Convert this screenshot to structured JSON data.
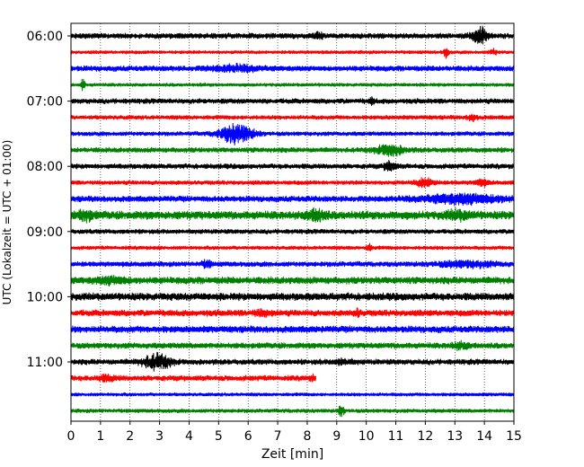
{
  "chart_data": {
    "type": "line",
    "title": "",
    "xlabel": "Zeit  [min]",
    "ylabel": "UTC (Lokalzeit = UTC + 01:00)",
    "xlim": [
      0,
      15
    ],
    "x_ticks": [
      "0",
      "1",
      "2",
      "3",
      "4",
      "5",
      "6",
      "7",
      "8",
      "9",
      "10",
      "11",
      "12",
      "13",
      "14",
      "15"
    ],
    "y_ticks": [
      {
        "label": "06:00",
        "row": 0
      },
      {
        "label": "07:00",
        "row": 4
      },
      {
        "label": "08:00",
        "row": 8
      },
      {
        "label": "09:00",
        "row": 12
      },
      {
        "label": "10:00",
        "row": 16
      },
      {
        "label": "11:00",
        "row": 20
      }
    ],
    "grid": "vertical dotted",
    "row_interval_minutes": 15,
    "color_cycle": [
      "#000000",
      "#ff0000",
      "#0000ff",
      "#008000"
    ],
    "series": [
      {
        "start": "06:00",
        "color": "#000000",
        "end_minute": 15,
        "noise": 2.6,
        "events": [
          {
            "t": 13.85,
            "amp": 7,
            "width": 0.25
          },
          {
            "t": 8.4,
            "amp": 2.5,
            "width": 0.15
          }
        ]
      },
      {
        "start": "06:15",
        "color": "#ff0000",
        "end_minute": 15,
        "noise": 1.6,
        "events": [
          {
            "t": 12.7,
            "amp": 5,
            "width": 0.08
          },
          {
            "t": 14.3,
            "amp": 2.5,
            "width": 0.12
          }
        ]
      },
      {
        "start": "06:30",
        "color": "#0000ff",
        "end_minute": 15,
        "noise": 2.6,
        "events": [
          {
            "t": 5.6,
            "amp": 2.5,
            "width": 0.8
          }
        ]
      },
      {
        "start": "06:45",
        "color": "#008000",
        "end_minute": 15,
        "noise": 1.6,
        "events": [
          {
            "t": 0.4,
            "amp": 6,
            "width": 0.06
          }
        ]
      },
      {
        "start": "07:00",
        "color": "#000000",
        "end_minute": 15,
        "noise": 2.4,
        "events": [
          {
            "t": 10.2,
            "amp": 3,
            "width": 0.08
          }
        ]
      },
      {
        "start": "07:15",
        "color": "#ff0000",
        "end_minute": 15,
        "noise": 2.0,
        "events": [
          {
            "t": 13.6,
            "amp": 3,
            "width": 0.15
          }
        ]
      },
      {
        "start": "07:30",
        "color": "#0000ff",
        "end_minute": 15,
        "noise": 2.0,
        "events": [
          {
            "t": 5.6,
            "amp": 9,
            "width": 0.55
          }
        ]
      },
      {
        "start": "07:45",
        "color": "#008000",
        "end_minute": 15,
        "noise": 2.4,
        "events": [
          {
            "t": 10.8,
            "amp": 5,
            "width": 0.45
          }
        ]
      },
      {
        "start": "08:00",
        "color": "#000000",
        "end_minute": 15,
        "noise": 2.4,
        "events": [
          {
            "t": 10.8,
            "amp": 5,
            "width": 0.18
          }
        ]
      },
      {
        "start": "08:15",
        "color": "#ff0000",
        "end_minute": 15,
        "noise": 2.0,
        "events": [
          {
            "t": 12.0,
            "amp": 4,
            "width": 0.3
          },
          {
            "t": 13.9,
            "amp": 3,
            "width": 0.2
          }
        ]
      },
      {
        "start": "08:30",
        "color": "#0000ff",
        "end_minute": 15,
        "noise": 2.8,
        "events": [
          {
            "t": 13.3,
            "amp": 4,
            "width": 1.4
          }
        ]
      },
      {
        "start": "08:45",
        "color": "#008000",
        "end_minute": 15,
        "noise": 4.0,
        "events": [
          {
            "t": 8.3,
            "amp": 5,
            "width": 0.3
          },
          {
            "t": 0.5,
            "amp": 4,
            "width": 0.25
          },
          {
            "t": 13.1,
            "amp": 3,
            "width": 0.4
          }
        ]
      },
      {
        "start": "09:00",
        "color": "#000000",
        "end_minute": 15,
        "noise": 2.2,
        "events": []
      },
      {
        "start": "09:15",
        "color": "#ff0000",
        "end_minute": 15,
        "noise": 1.8,
        "events": [
          {
            "t": 10.1,
            "amp": 2.5,
            "width": 0.1
          }
        ]
      },
      {
        "start": "09:30",
        "color": "#0000ff",
        "end_minute": 15,
        "noise": 2.4,
        "events": [
          {
            "t": 4.6,
            "amp": 3,
            "width": 0.15
          },
          {
            "t": 13.4,
            "amp": 2.5,
            "width": 1.0
          }
        ]
      },
      {
        "start": "09:45",
        "color": "#008000",
        "end_minute": 15,
        "noise": 3.4,
        "events": [
          {
            "t": 1.4,
            "amp": 2.5,
            "width": 0.5
          }
        ]
      },
      {
        "start": "10:00",
        "color": "#000000",
        "end_minute": 15,
        "noise": 3.6,
        "events": []
      },
      {
        "start": "10:15",
        "color": "#ff0000",
        "end_minute": 15,
        "noise": 3.0,
        "events": [
          {
            "t": 9.7,
            "amp": 3,
            "width": 0.1
          },
          {
            "t": 6.5,
            "amp": 2,
            "width": 0.3
          }
        ]
      },
      {
        "start": "10:30",
        "color": "#0000ff",
        "end_minute": 15,
        "noise": 3.2,
        "events": []
      },
      {
        "start": "10:45",
        "color": "#008000",
        "end_minute": 15,
        "noise": 2.8,
        "events": [
          {
            "t": 13.2,
            "amp": 2.5,
            "width": 0.3
          }
        ]
      },
      {
        "start": "11:00",
        "color": "#000000",
        "end_minute": 15,
        "noise": 2.6,
        "events": [
          {
            "t": 2.9,
            "amp": 7,
            "width": 0.45
          },
          {
            "t": 9.2,
            "amp": 2,
            "width": 0.3
          }
        ]
      },
      {
        "start": "11:15",
        "color": "#ff0000",
        "end_minute": 8.3,
        "noise": 2.6,
        "events": [
          {
            "t": 1.2,
            "amp": 2,
            "width": 0.3
          },
          {
            "t": 8.2,
            "amp": 2,
            "width": 0.1
          }
        ]
      },
      {
        "start": "11:30",
        "color": "#0000ff",
        "end_minute": 15,
        "noise": 1.6,
        "events": []
      },
      {
        "start": "11:45",
        "color": "#008000",
        "end_minute": 15,
        "noise": 1.8,
        "events": [
          {
            "t": 9.15,
            "amp": 5,
            "width": 0.1
          }
        ]
      }
    ]
  }
}
